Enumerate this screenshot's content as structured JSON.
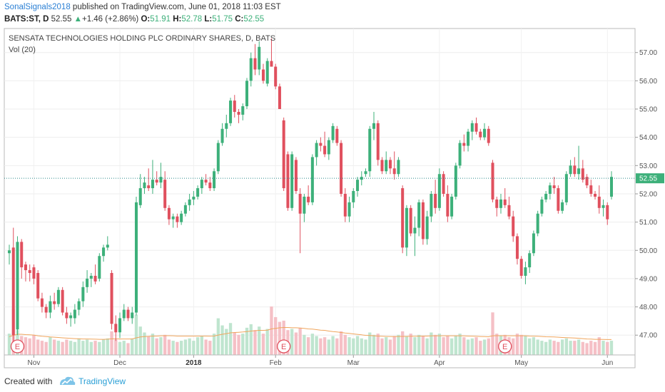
{
  "header": {
    "author": "SonalSignals2018",
    "published_text": "published on TradingView.com, June 01, 2018 11:03 EST",
    "symbol": "BATS:ST, D",
    "last": "52.55",
    "change": "+1.46 (+2.86%)",
    "o_label": "O:",
    "o_value": "51.91",
    "h_label": "H:",
    "h_value": "52.78",
    "l_label": "L:",
    "l_value": "51.75",
    "c_label": "C:",
    "c_value": "52.55"
  },
  "footer": {
    "created_with": "Created with",
    "brand": "TradingView"
  },
  "colors": {
    "up": "#3db07a",
    "down": "#e0505e",
    "vol_up": "#bfe5cf",
    "vol_down": "#f5c0c6",
    "ma": "#f0a55c",
    "last_line": "#2a8a8a"
  },
  "chart_data": {
    "type": "candlestick",
    "title": "SENSATA TECHNOLOGIES HOLDING PLC ORDINARY SHARES, D, BATS",
    "indicator_label": "Vol (20)",
    "ylim": [
      46.3,
      57.85
    ],
    "yticks": [
      47.0,
      48.0,
      49.0,
      50.0,
      51.0,
      52.0,
      53.0,
      54.0,
      55.0,
      56.0,
      57.0
    ],
    "last_price": 52.55,
    "last_price_label": "52.55",
    "x_labels": [
      {
        "label": "Nov",
        "index": 6,
        "bold": false
      },
      {
        "label": "Dec",
        "index": 27,
        "bold": false
      },
      {
        "label": "2018",
        "index": 45,
        "bold": true
      },
      {
        "label": "Feb",
        "index": 65,
        "bold": false
      },
      {
        "label": "Mar",
        "index": 84,
        "bold": false
      },
      {
        "label": "Apr",
        "index": 105,
        "bold": false
      },
      {
        "label": "May",
        "index": 125,
        "bold": false
      },
      {
        "label": "Jun",
        "index": 146,
        "bold": false
      }
    ],
    "earnings_markers": [
      {
        "index": 2,
        "label": "E"
      },
      {
        "index": 67,
        "label": "E"
      },
      {
        "index": 121,
        "label": "E"
      }
    ],
    "ohlc": [
      [
        49.9,
        50.2,
        49.5,
        50.0
      ],
      [
        50.1,
        50.8,
        46.4,
        47.0
      ],
      [
        47.2,
        50.5,
        47.0,
        50.3
      ],
      [
        50.3,
        50.4,
        49.0,
        49.4
      ],
      [
        49.5,
        49.6,
        48.9,
        49.3
      ],
      [
        49.3,
        49.5,
        48.9,
        49.2
      ],
      [
        49.4,
        49.5,
        48.8,
        49.0
      ],
      [
        49.2,
        49.3,
        48.2,
        48.3
      ],
      [
        48.3,
        48.5,
        47.8,
        48.0
      ],
      [
        48.0,
        48.1,
        47.6,
        47.8
      ],
      [
        47.8,
        48.4,
        47.6,
        48.2
      ],
      [
        48.2,
        48.5,
        47.9,
        48.1
      ],
      [
        48.1,
        48.7,
        48.0,
        48.6
      ],
      [
        48.6,
        48.7,
        47.7,
        47.8
      ],
      [
        47.8,
        48.0,
        47.4,
        47.6
      ],
      [
        47.6,
        47.8,
        47.3,
        47.7
      ],
      [
        47.6,
        48.1,
        47.4,
        47.9
      ],
      [
        47.9,
        48.3,
        47.7,
        48.2
      ],
      [
        48.2,
        48.9,
        48.0,
        48.7
      ],
      [
        48.7,
        49.3,
        48.5,
        49.0
      ],
      [
        49.0,
        49.2,
        48.7,
        49.1
      ],
      [
        49.1,
        49.5,
        48.8,
        48.9
      ],
      [
        49.0,
        49.9,
        48.9,
        49.8
      ],
      [
        49.8,
        50.2,
        49.6,
        50.1
      ],
      [
        50.1,
        50.5,
        50.0,
        50.2
      ],
      [
        49.2,
        49.3,
        47.2,
        47.4
      ],
      [
        47.4,
        47.7,
        46.8,
        47.1
      ],
      [
        47.1,
        47.8,
        46.9,
        47.6
      ],
      [
        47.6,
        48.1,
        47.5,
        47.9
      ],
      [
        47.9,
        48.0,
        47.5,
        47.6
      ],
      [
        47.6,
        48.0,
        47.4,
        47.8
      ],
      [
        47.8,
        51.9,
        47.7,
        51.7
      ],
      [
        51.6,
        52.7,
        51.5,
        52.2
      ],
      [
        52.2,
        52.6,
        52.0,
        52.4
      ],
      [
        52.3,
        52.9,
        52.1,
        52.2
      ],
      [
        52.2,
        53.2,
        52.0,
        52.5
      ],
      [
        52.5,
        52.8,
        52.3,
        52.4
      ],
      [
        52.4,
        53.1,
        52.2,
        52.6
      ],
      [
        52.5,
        52.8,
        51.4,
        51.5
      ],
      [
        51.5,
        51.6,
        50.9,
        51.1
      ],
      [
        51.1,
        51.3,
        50.8,
        51.2
      ],
      [
        51.2,
        51.3,
        50.8,
        51.0
      ],
      [
        51.0,
        51.4,
        50.9,
        51.3
      ],
      [
        51.3,
        51.7,
        51.2,
        51.6
      ],
      [
        51.6,
        52.0,
        51.4,
        51.8
      ],
      [
        51.8,
        52.1,
        51.6,
        51.9
      ],
      [
        51.9,
        52.3,
        51.8,
        52.2
      ],
      [
        52.2,
        52.6,
        52.0,
        52.5
      ],
      [
        52.5,
        52.7,
        52.3,
        52.4
      ],
      [
        52.4,
        52.6,
        52.1,
        52.2
      ],
      [
        52.2,
        52.9,
        52.1,
        52.8
      ],
      [
        52.8,
        53.9,
        52.7,
        53.8
      ],
      [
        53.8,
        54.5,
        53.7,
        54.3
      ],
      [
        54.3,
        54.8,
        54.0,
        54.5
      ],
      [
        54.5,
        55.4,
        54.4,
        55.3
      ],
      [
        55.3,
        55.5,
        54.7,
        54.9
      ],
      [
        54.9,
        55.0,
        54.5,
        54.8
      ],
      [
        54.8,
        55.2,
        54.6,
        55.1
      ],
      [
        55.1,
        56.1,
        55.0,
        56.0
      ],
      [
        56.0,
        57.0,
        55.8,
        56.8
      ],
      [
        56.8,
        57.3,
        56.2,
        56.4
      ],
      [
        56.4,
        57.4,
        56.2,
        57.2
      ],
      [
        56.4,
        56.6,
        55.9,
        56.0
      ],
      [
        55.9,
        56.8,
        55.8,
        56.7
      ],
      [
        56.7,
        57.5,
        56.5,
        56.5
      ],
      [
        56.5,
        56.6,
        55.7,
        55.8
      ],
      [
        55.8,
        55.9,
        55.0,
        55.0
      ],
      [
        54.6,
        54.7,
        52.1,
        52.2
      ],
      [
        53.4,
        53.5,
        51.4,
        51.5
      ],
      [
        51.5,
        53.5,
        51.4,
        53.4
      ],
      [
        53.2,
        53.3,
        52.0,
        52.1
      ],
      [
        52.0,
        52.2,
        49.9,
        51.3
      ],
      [
        51.3,
        52.0,
        51.0,
        51.9
      ],
      [
        51.9,
        52.3,
        51.6,
        51.7
      ],
      [
        51.7,
        53.4,
        51.6,
        53.3
      ],
      [
        53.3,
        53.9,
        53.0,
        53.8
      ],
      [
        53.8,
        54.0,
        53.5,
        53.7
      ],
      [
        53.7,
        54.2,
        53.3,
        53.4
      ],
      [
        53.4,
        54.0,
        53.2,
        53.9
      ],
      [
        53.9,
        54.5,
        53.8,
        54.4
      ],
      [
        54.3,
        54.4,
        53.7,
        53.8
      ],
      [
        53.8,
        53.9,
        51.9,
        52.0
      ],
      [
        52.0,
        52.2,
        51.0,
        51.2
      ],
      [
        51.2,
        51.9,
        51.0,
        51.7
      ],
      [
        51.7,
        52.2,
        51.5,
        52.1
      ],
      [
        52.1,
        52.6,
        51.9,
        52.5
      ],
      [
        52.5,
        52.8,
        52.3,
        52.6
      ],
      [
        52.7,
        52.9,
        52.6,
        52.8
      ],
      [
        52.8,
        54.4,
        52.6,
        54.3
      ],
      [
        54.3,
        54.9,
        53.9,
        54.5
      ],
      [
        54.5,
        54.6,
        53.0,
        53.2
      ],
      [
        53.2,
        53.3,
        52.7,
        52.8
      ],
      [
        52.8,
        53.5,
        52.7,
        53.2
      ],
      [
        53.2,
        53.3,
        52.7,
        52.9
      ],
      [
        52.9,
        53.5,
        52.5,
        52.7
      ],
      [
        52.7,
        53.3,
        52.6,
        53.2
      ],
      [
        52.2,
        52.3,
        49.9,
        50.1
      ],
      [
        50.1,
        51.6,
        49.8,
        51.5
      ],
      [
        51.5,
        51.6,
        50.5,
        50.6
      ],
      [
        50.6,
        51.2,
        49.8,
        50.8
      ],
      [
        50.8,
        51.8,
        50.5,
        51.7
      ],
      [
        51.7,
        51.8,
        50.2,
        50.4
      ],
      [
        50.4,
        51.4,
        50.2,
        51.2
      ],
      [
        51.2,
        52.1,
        51.0,
        52.0
      ],
      [
        52.0,
        52.5,
        51.3,
        51.5
      ],
      [
        51.5,
        52.9,
        51.4,
        52.7
      ],
      [
        52.7,
        52.8,
        51.9,
        52.0
      ],
      [
        52.0,
        52.3,
        51.0,
        51.2
      ],
      [
        51.2,
        52.0,
        51.1,
        51.9
      ],
      [
        51.9,
        53.1,
        51.8,
        53.0
      ],
      [
        53.0,
        53.9,
        52.9,
        53.8
      ],
      [
        53.8,
        54.1,
        53.5,
        53.7
      ],
      [
        53.7,
        54.3,
        53.5,
        54.2
      ],
      [
        54.2,
        54.6,
        53.9,
        54.5
      ],
      [
        54.5,
        54.7,
        54.1,
        54.2
      ],
      [
        54.2,
        54.3,
        53.9,
        54.0
      ],
      [
        54.0,
        54.5,
        53.9,
        54.3
      ],
      [
        54.3,
        54.4,
        53.7,
        53.8
      ],
      [
        53.1,
        53.2,
        51.7,
        51.8
      ],
      [
        51.8,
        51.9,
        51.2,
        51.5
      ],
      [
        51.5,
        52.0,
        51.3,
        51.8
      ],
      [
        51.8,
        52.2,
        51.5,
        51.6
      ],
      [
        51.6,
        51.9,
        51.1,
        51.2
      ],
      [
        51.2,
        51.4,
        50.3,
        50.5
      ],
      [
        50.5,
        50.6,
        49.5,
        49.7
      ],
      [
        49.7,
        49.8,
        49.0,
        49.1
      ],
      [
        49.1,
        49.6,
        48.8,
        49.4
      ],
      [
        49.4,
        50.0,
        49.2,
        49.9
      ],
      [
        49.9,
        50.7,
        49.8,
        50.6
      ],
      [
        50.6,
        51.4,
        50.5,
        51.3
      ],
      [
        51.3,
        51.9,
        51.2,
        51.8
      ],
      [
        51.8,
        52.1,
        51.7,
        52.0
      ],
      [
        52.0,
        52.4,
        51.8,
        52.3
      ],
      [
        52.3,
        52.6,
        52.0,
        52.2
      ],
      [
        52.2,
        52.3,
        51.3,
        51.4
      ],
      [
        51.4,
        51.8,
        51.3,
        51.7
      ],
      [
        51.7,
        52.8,
        51.6,
        52.7
      ],
      [
        52.7,
        53.2,
        52.6,
        53.0
      ],
      [
        53.0,
        53.3,
        52.6,
        52.7
      ],
      [
        52.7,
        53.7,
        52.5,
        52.9
      ],
      [
        52.9,
        53.2,
        52.4,
        52.5
      ],
      [
        52.6,
        52.7,
        52.2,
        52.3
      ],
      [
        52.3,
        52.5,
        51.9,
        52.0
      ],
      [
        52.0,
        52.1,
        51.8,
        51.9
      ],
      [
        51.9,
        52.3,
        51.3,
        51.5
      ],
      [
        51.5,
        51.8,
        51.2,
        51.6
      ],
      [
        51.6,
        51.7,
        50.9,
        51.1
      ],
      [
        51.9,
        52.8,
        51.8,
        52.6
      ]
    ],
    "volume": [
      1.8,
      3.9,
      2.1,
      1.6,
      1.5,
      1.4,
      1.7,
      1.3,
      1.2,
      1.1,
      1.5,
      1.3,
      1.2,
      1.1,
      1.3,
      1.2,
      1.1,
      1.4,
      1.2,
      1.3,
      1.1,
      1.2,
      1.1,
      1.3,
      1.4,
      2.0,
      1.3,
      1.1,
      1.2,
      1.0,
      1.4,
      3.4,
      2.4,
      1.9,
      1.6,
      1.8,
      1.4,
      1.5,
      1.7,
      1.3,
      1.2,
      1.1,
      1.2,
      1.3,
      1.4,
      1.2,
      1.5,
      1.6,
      1.3,
      1.2,
      1.8,
      3.1,
      2.5,
      2.2,
      2.7,
      1.9,
      1.7,
      1.8,
      2.3,
      2.6,
      2.1,
      2.4,
      1.8,
      2.2,
      4.1,
      3.2,
      2.8,
      2.9,
      2.1,
      2.2,
      1.9,
      2.3,
      1.7,
      1.5,
      1.8,
      1.6,
      1.4,
      1.5,
      1.3,
      1.6,
      1.4,
      2.0,
      1.7,
      1.5,
      1.4,
      1.6,
      1.4,
      1.3,
      1.9,
      1.7,
      1.8,
      1.4,
      1.5,
      1.3,
      1.6,
      1.7,
      2.0,
      1.6,
      1.8,
      1.5,
      1.7,
      1.6,
      1.4,
      1.9,
      1.7,
      1.8,
      1.5,
      1.6,
      1.4,
      1.6,
      1.8,
      1.5,
      1.3,
      1.4,
      1.5,
      1.2,
      1.3,
      1.4,
      3.6,
      1.8,
      1.6,
      1.7,
      1.5,
      1.4,
      1.8,
      1.7,
      1.6,
      1.4,
      1.5,
      1.3,
      1.2,
      1.1,
      1.3,
      1.2,
      1.1,
      1.3,
      1.4,
      1.2,
      1.2,
      1.3,
      1.1,
      1.0,
      1.2,
      1.1,
      1.5,
      1.2,
      1.1,
      1.2
    ],
    "ma_vol": [
      1.55,
      1.65,
      1.75,
      1.75,
      1.72,
      1.7,
      1.68,
      1.62,
      1.58,
      1.55,
      1.52,
      1.5,
      1.48,
      1.45,
      1.42,
      1.4,
      1.38,
      1.36,
      1.35,
      1.35,
      1.34,
      1.33,
      1.32,
      1.32,
      1.33,
      1.36,
      1.36,
      1.35,
      1.35,
      1.35,
      1.35,
      1.45,
      1.52,
      1.55,
      1.57,
      1.6,
      1.6,
      1.62,
      1.63,
      1.63,
      1.62,
      1.6,
      1.6,
      1.6,
      1.6,
      1.6,
      1.6,
      1.6,
      1.6,
      1.59,
      1.6,
      1.68,
      1.75,
      1.8,
      1.87,
      1.9,
      1.92,
      1.94,
      1.98,
      2.02,
      2.05,
      2.08,
      2.08,
      2.1,
      2.2,
      2.25,
      2.3,
      2.32,
      2.32,
      2.3,
      2.3,
      2.28,
      2.25,
      2.2,
      2.18,
      2.14,
      2.1,
      2.08,
      2.02,
      1.98,
      1.95,
      1.9,
      1.85,
      1.82,
      1.78,
      1.74,
      1.7,
      1.66,
      1.64,
      1.62,
      1.6,
      1.58,
      1.57,
      1.56,
      1.55,
      1.56,
      1.57,
      1.57,
      1.58,
      1.58,
      1.59,
      1.6,
      1.6,
      1.61,
      1.62,
      1.62,
      1.62,
      1.62,
      1.62,
      1.62,
      1.62,
      1.61,
      1.6,
      1.59,
      1.58,
      1.56,
      1.55,
      1.54,
      1.62,
      1.63,
      1.63,
      1.63,
      1.62,
      1.62,
      1.62,
      1.62,
      1.62,
      1.6,
      1.59,
      1.58,
      1.56,
      1.54,
      1.53,
      1.52,
      1.5,
      1.48,
      1.46,
      1.45,
      1.43,
      1.41,
      1.38,
      1.35,
      1.34,
      1.32,
      1.32,
      1.31,
      1.3,
      1.3
    ]
  }
}
